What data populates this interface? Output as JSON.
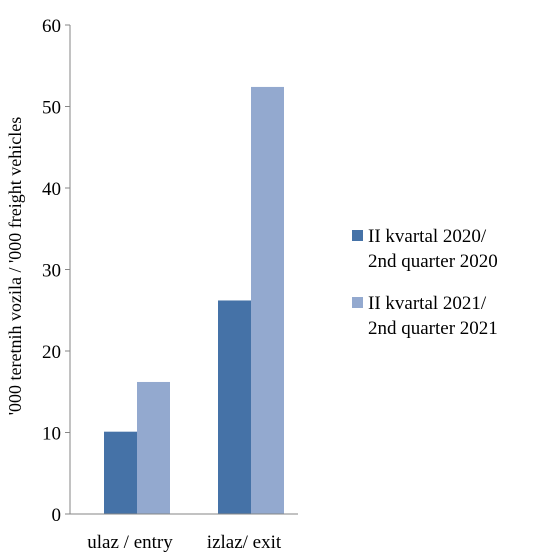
{
  "chart_data": {
    "type": "bar",
    "categories": [
      "ulaz / entry",
      "izlaz/ exit"
    ],
    "series": [
      {
        "name_lines": [
          "II kvartal  2020/",
          "2nd quarter 2020"
        ],
        "color": "#4572A7",
        "values": [
          10.1,
          26.2
        ]
      },
      {
        "name_lines": [
          "II kvartal  2021/",
          "2nd quarter 2021"
        ],
        "color": "#93A9CF",
        "values": [
          16.2,
          52.4
        ]
      }
    ],
    "ylabel": "'000 teretnih vozila / '000 freight vehicles",
    "ylim": [
      0,
      60
    ],
    "yticks": [
      0,
      10,
      20,
      30,
      40,
      50,
      60
    ],
    "grid": false,
    "legend_position": "right"
  }
}
